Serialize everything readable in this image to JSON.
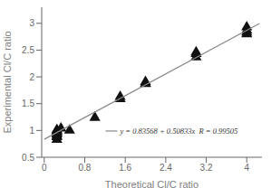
{
  "chart_data": {
    "type": "scatter",
    "xlabel": "Theoretical Cl/C ratio",
    "ylabel": "Experimental Cl/C ratio",
    "xlim": [
      -0.05,
      4.3
    ],
    "ylim": [
      0.5,
      3.3
    ],
    "xticks": [
      0.0,
      0.8,
      1.6,
      2.4,
      3.2,
      4.0
    ],
    "yticks": [
      0.5,
      1.0,
      1.5,
      2.0,
      2.5,
      3.0
    ],
    "series": [
      {
        "type": "scatter",
        "marker": "triangle",
        "color": "#111111",
        "x": [
          0.25,
          0.25,
          0.25,
          0.25,
          0.25,
          0.25,
          0.25,
          0.25,
          0.25,
          0.33,
          0.5,
          1.0,
          1.5,
          1.5,
          2.0,
          2.0,
          2.0,
          3.0,
          3.0,
          3.0,
          4.0,
          4.0,
          4.0,
          4.0
        ],
        "values": [
          1.01,
          1.0,
          0.98,
          0.97,
          0.95,
          0.93,
          0.9,
          0.88,
          0.83,
          1.04,
          1.0,
          1.24,
          1.59,
          1.63,
          1.87,
          1.88,
          1.91,
          2.37,
          2.43,
          2.46,
          2.8,
          2.83,
          2.87,
          2.93
        ]
      },
      {
        "type": "line",
        "color": "#888888",
        "x": [
          0.0,
          4.25
        ],
        "values": [
          0.83568,
          2.9960825
        ]
      }
    ],
    "annotations": [
      {
        "text": "y = 0.83568 + 0.50833x  R = 0.99505"
      }
    ]
  }
}
